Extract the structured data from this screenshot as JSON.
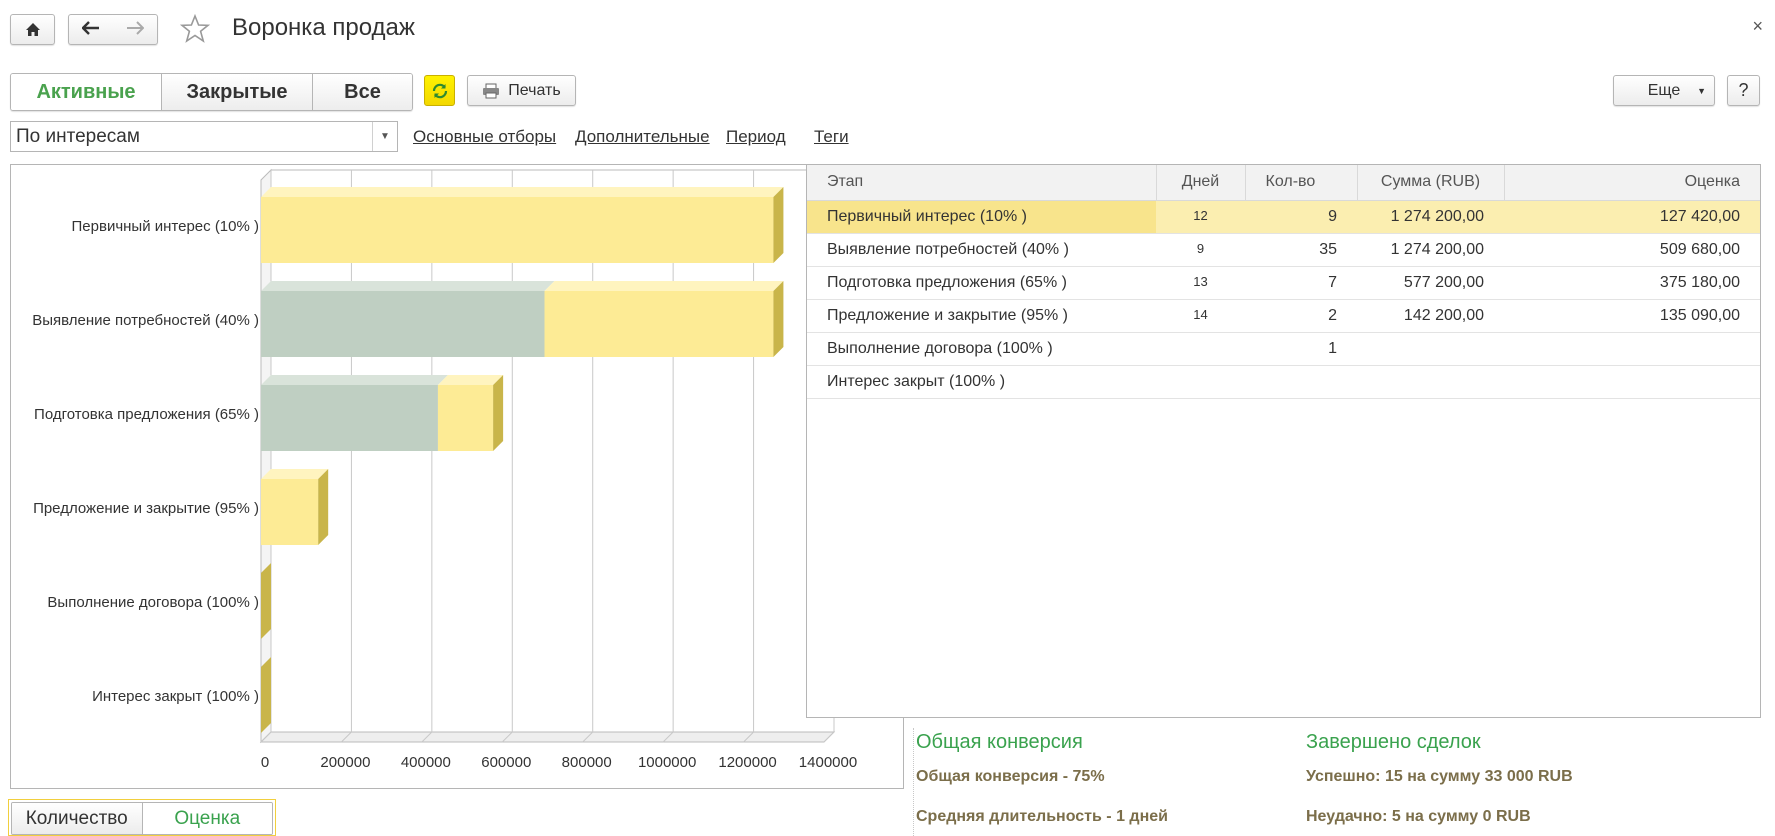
{
  "window": {
    "title": "Воронка продаж",
    "close_glyph": "×"
  },
  "nav": {
    "home_icon": "home-icon",
    "back_icon": "arrow-left-icon",
    "forward_icon": "arrow-right-icon",
    "favorite_icon": "star-icon"
  },
  "toolbar": {
    "tabs": [
      {
        "label": "Активные",
        "active": true
      },
      {
        "label": "Закрытые",
        "active": false
      },
      {
        "label": "Все",
        "active": false
      }
    ],
    "refresh_icon": "refresh-icon",
    "print_label": "Печать",
    "more_label": "Еще",
    "help_label": "?"
  },
  "filters": {
    "grouping_value": "По интересам",
    "links": [
      "Основные отборы",
      "Дополнительные",
      "Период",
      "Теги"
    ]
  },
  "chart_data": {
    "type": "bar",
    "orientation": "horizontal",
    "stacked": true,
    "categories": [
      "Первичный интерес (10% )",
      "Выявление потребностей (40% )",
      "Подготовка предложения (65% )",
      "Предложение и закрытие (95% )",
      "Выполнение договора (100% )",
      "Интерес закрыт (100% )"
    ],
    "series": [
      {
        "values": [
          0,
          705000,
          440000,
          0,
          0,
          0
        ],
        "color": "#bfcfc2"
      },
      {
        "values": [
          1274200,
          569200,
          137200,
          142200,
          0,
          0
        ],
        "color": "#fdeb95"
      }
    ],
    "xticks": [
      0,
      200000,
      400000,
      600000,
      800000,
      1000000,
      1200000,
      1400000
    ],
    "xlim": [
      0,
      1400000
    ],
    "grid": true
  },
  "table": {
    "columns": [
      "Этап",
      "Дней",
      "Кол-во",
      "Сумма (RUB)",
      "Оценка"
    ],
    "rows": [
      {
        "stage": "Первичный интерес (10% )",
        "days": "12",
        "count": "9",
        "sum": "1 274 200,00",
        "estimate": "127 420,00",
        "selected": true
      },
      {
        "stage": "Выявление потребностей (40% )",
        "days": "9",
        "count": "35",
        "sum": "1 274 200,00",
        "estimate": "509 680,00"
      },
      {
        "stage": "Подготовка предложения (65% )",
        "days": "13",
        "count": "7",
        "sum": "577 200,00",
        "estimate": "375 180,00"
      },
      {
        "stage": "Предложение и закрытие (95% )",
        "days": "14",
        "count": "2",
        "sum": "142 200,00",
        "estimate": "135 090,00"
      },
      {
        "stage": "Выполнение договора (100% )",
        "days": "",
        "count": "1",
        "sum": "",
        "estimate": ""
      },
      {
        "stage": "Интерес закрыт (100% )",
        "days": "",
        "count": "",
        "sum": "",
        "estimate": ""
      }
    ]
  },
  "summary": {
    "conversion_heading": "Общая конверсия",
    "conversion_text": "Общая конверсия - 75%",
    "duration_text": "Средняя длительность - 1 дней",
    "deals_heading": "Завершено сделок",
    "success_text": "Успешно: 15 на сумму 33 000 RUB",
    "fail_text": "Неудачно: 5 на сумму 0 RUB"
  },
  "chart_mode": {
    "options": [
      "Количество",
      "Оценка"
    ],
    "selected": "Оценка"
  }
}
